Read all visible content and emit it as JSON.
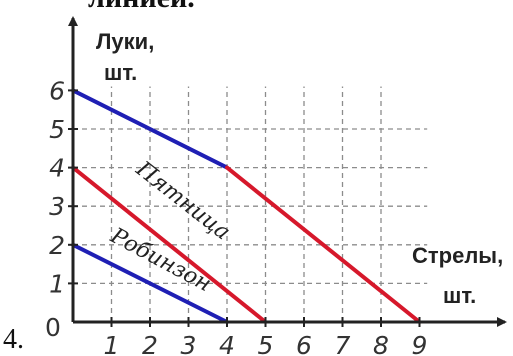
{
  "top_text": "линией.",
  "item_number": "4.",
  "chart_data": {
    "type": "line",
    "title": "",
    "ylabel": [
      "Луки,",
      "шт."
    ],
    "xlabel": [
      "Стрелы,",
      "шт."
    ],
    "origin_label": "0",
    "x_ticks": [
      "1",
      "2",
      "3",
      "4",
      "5",
      "6",
      "7",
      "8",
      "9"
    ],
    "y_ticks": [
      "1",
      "2",
      "3",
      "4",
      "5",
      "6"
    ],
    "xlim": [
      0,
      9.5
    ],
    "ylim": [
      0,
      7
    ],
    "grid": "dashed",
    "grid_lines_x": [
      1,
      2,
      3,
      4,
      5,
      6,
      7,
      8
    ],
    "grid_lines_y": [
      1,
      2,
      3,
      4,
      5
    ],
    "series": [
      {
        "name": "Робинзон",
        "color": "#1f1fb4",
        "points": [
          [
            0,
            2
          ],
          [
            4,
            0
          ]
        ]
      },
      {
        "name": "Пятница",
        "color": "#d6182b",
        "points": [
          [
            0,
            4
          ],
          [
            5,
            0
          ]
        ]
      },
      {
        "color": "#1f1fb4",
        "points": [
          [
            0,
            6
          ],
          [
            4,
            4
          ]
        ]
      },
      {
        "color": "#d6182b",
        "points": [
          [
            4,
            4
          ],
          [
            9,
            0
          ]
        ]
      }
    ],
    "series_labels": [
      {
        "text": "Пятница",
        "x": 2.75,
        "y": 3.0,
        "angle": 38
      },
      {
        "text": "Робинзон",
        "x": 2.2,
        "y": 1.45,
        "angle": 28
      }
    ]
  }
}
